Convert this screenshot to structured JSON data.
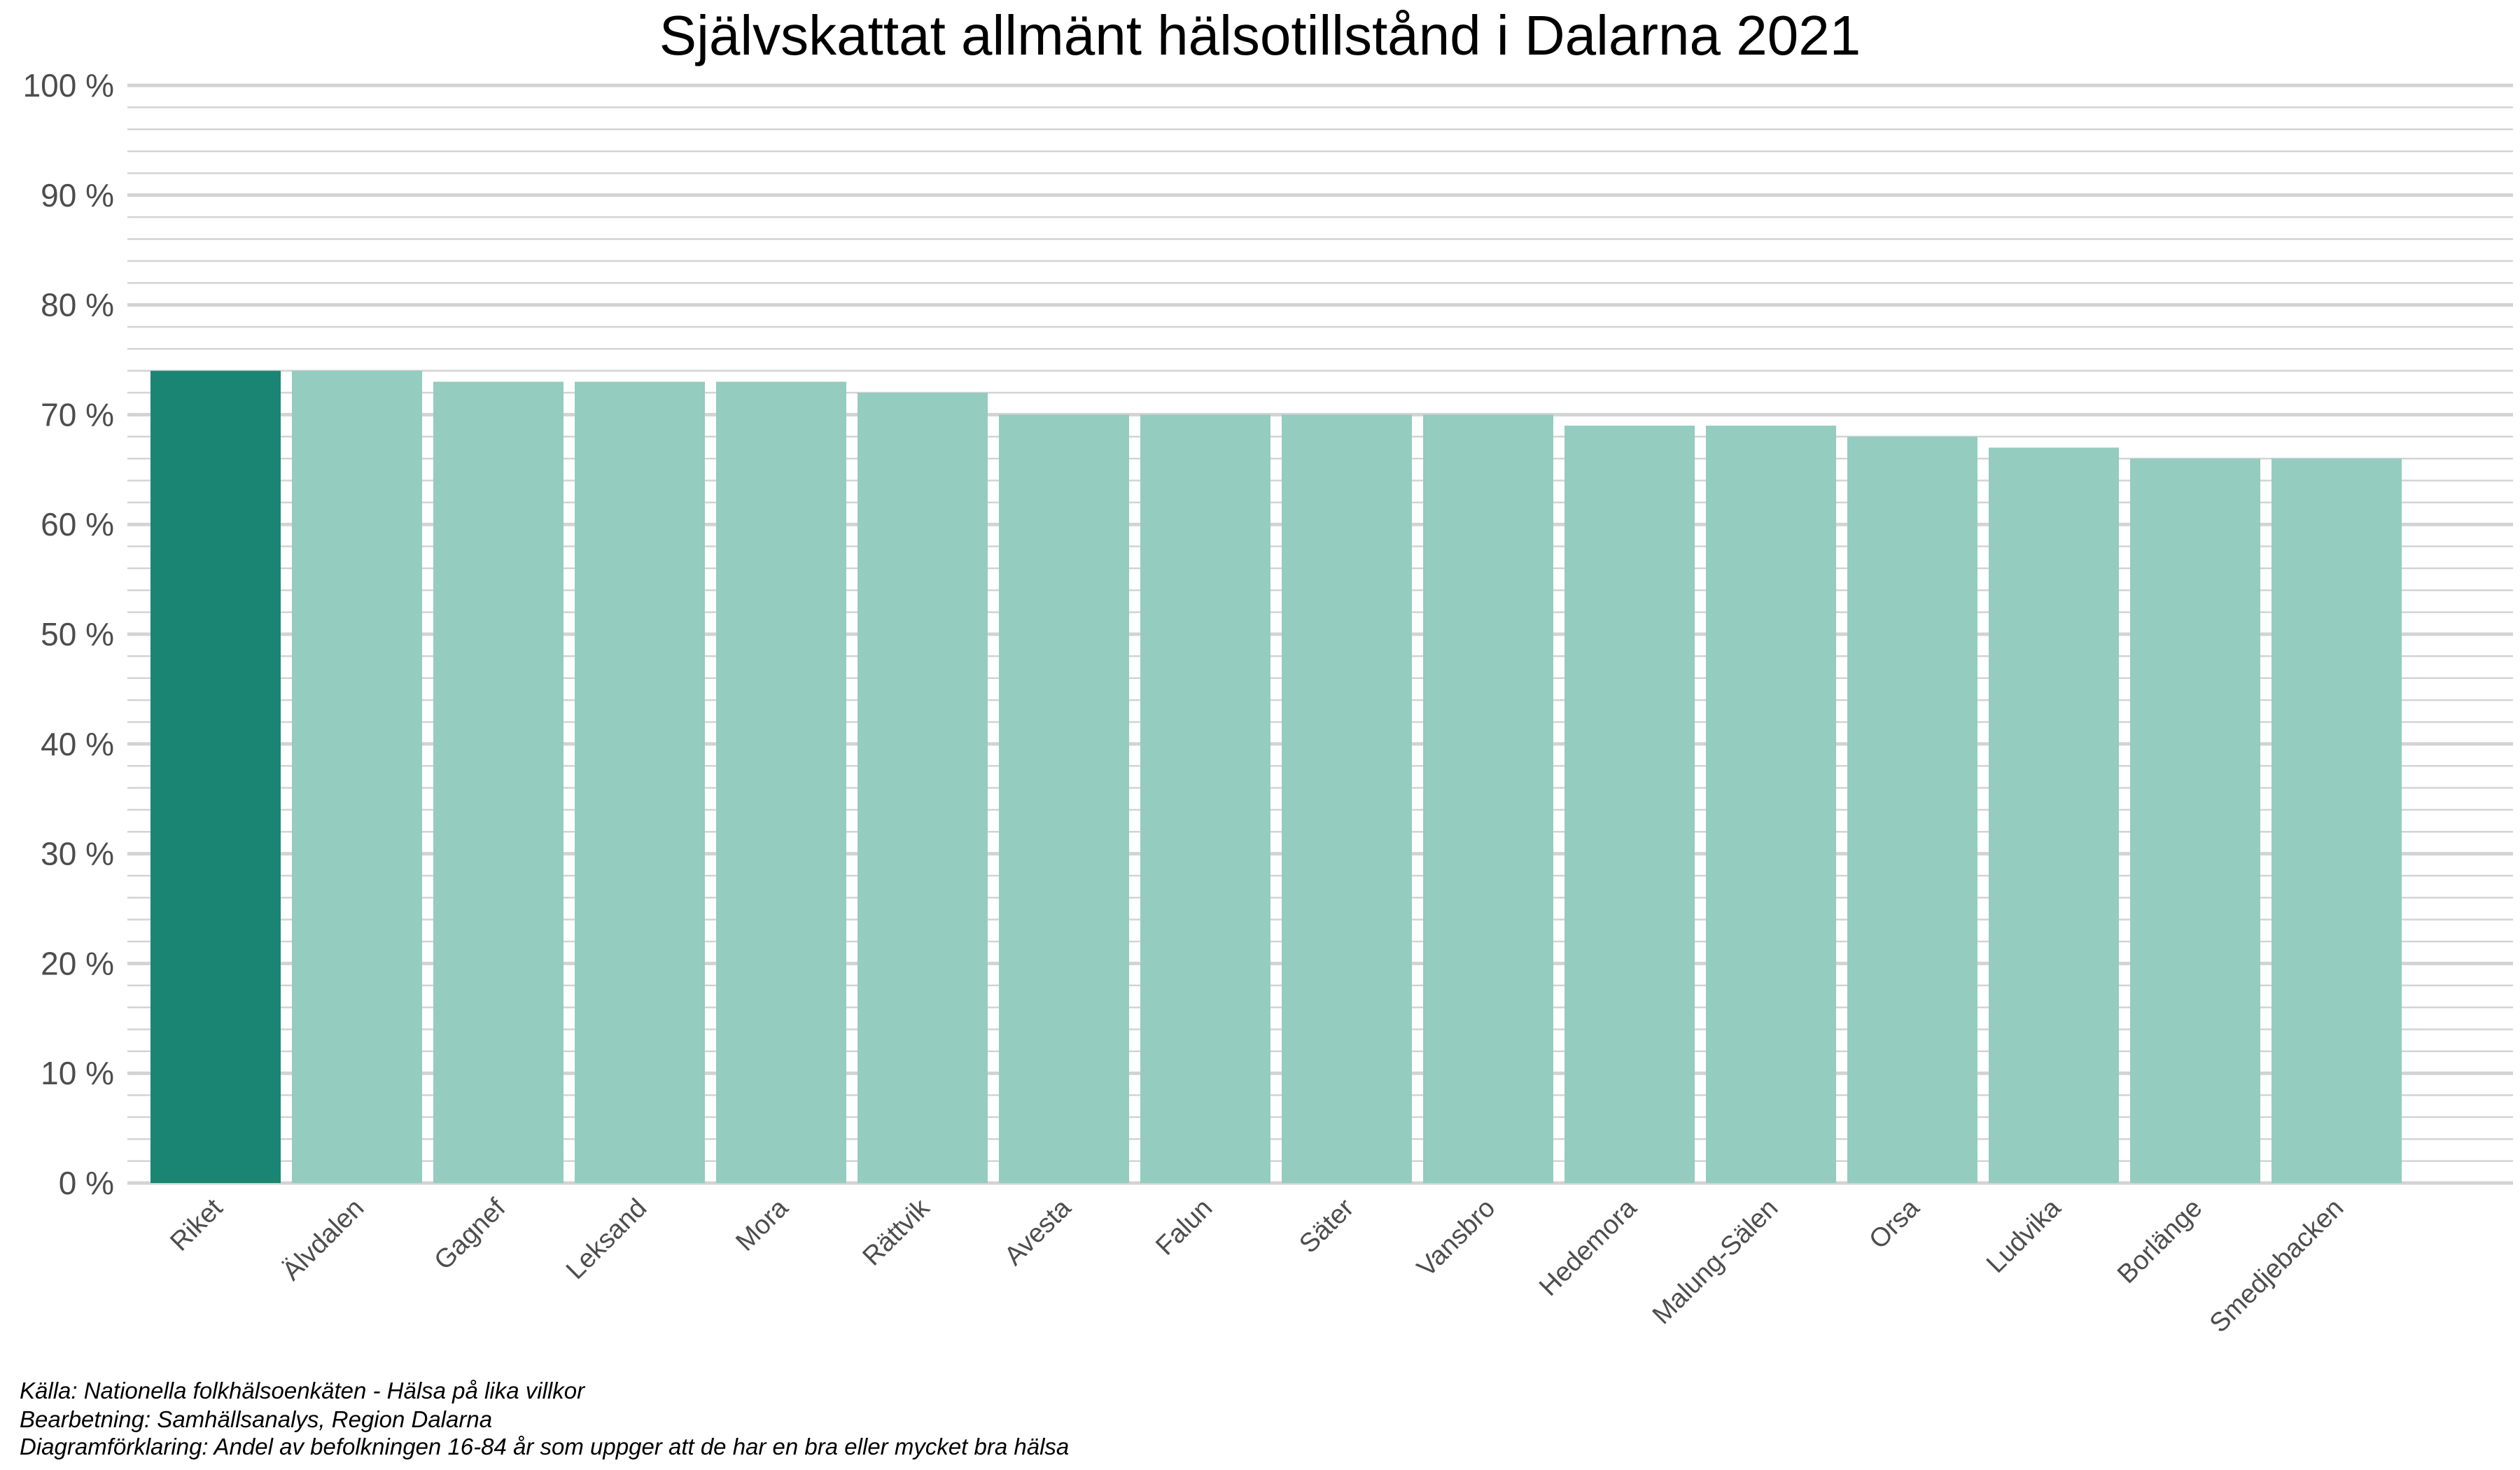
{
  "chart_data": {
    "type": "bar",
    "title": "Självskattat allmänt hälsotillstånd i Dalarna 2021",
    "xlabel": "",
    "ylabel": "",
    "ylim": [
      0,
      100
    ],
    "y_ticks": [
      "0 %",
      "10 %",
      "20 %",
      "30 %",
      "40 %",
      "50 %",
      "60 %",
      "70 %",
      "80 %",
      "90 %",
      "100 %"
    ],
    "grid": true,
    "legend": "none",
    "categories": [
      "Riket",
      "Älvdalen",
      "Gagnef",
      "Leksand",
      "Mora",
      "Rättvik",
      "Avesta",
      "Falun",
      "Säter",
      "Vansbro",
      "Hedemora",
      "Malung-Sälen",
      "Orsa",
      "Ludvika",
      "Borlänge",
      "Smedjebacken"
    ],
    "values": [
      74,
      74,
      73,
      73,
      73,
      72,
      70,
      70,
      70,
      70,
      69,
      69,
      68,
      67,
      66,
      66
    ],
    "highlight_category": "Riket",
    "colors": {
      "highlight": "#1a8572",
      "bar": "#94ccbf",
      "grid": "#d3d3d3"
    }
  },
  "caption": {
    "source": "Källa: Nationella folkhälsoenkäten - Hälsa på lika villkor",
    "processing": " Bearbetning: Samhällsanalys, Region Dalarna",
    "explanation": "Diagramförklaring: Andel av befolkningen 16-84 år som uppger att de har en bra eller mycket bra hälsa"
  }
}
